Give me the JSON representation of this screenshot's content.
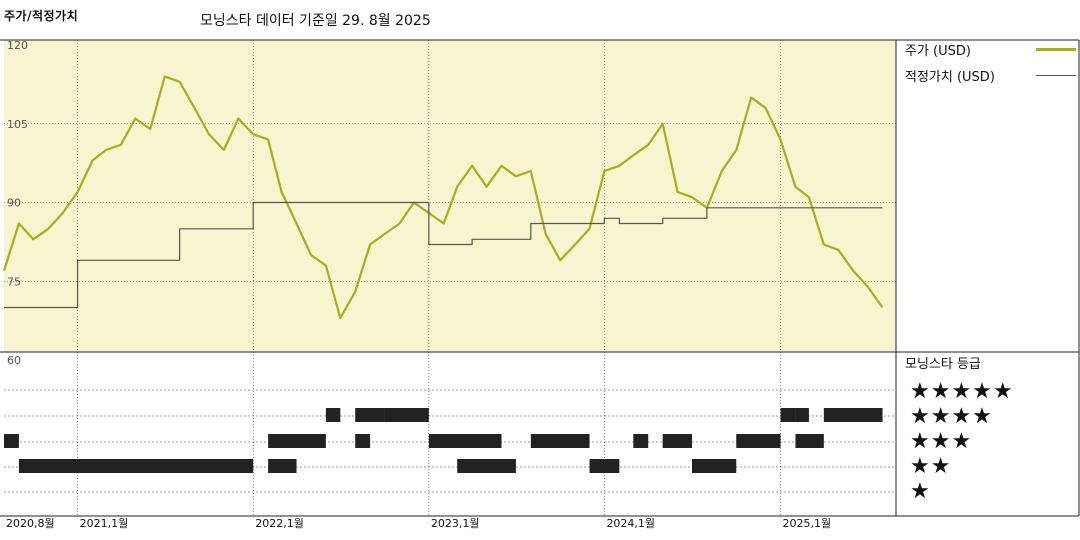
{
  "header": {
    "title": "주가/적정가치",
    "subtitle": "모닝스타 데이터 기준일 29. 8월 2025"
  },
  "legend": {
    "price_label": "주가 (USD)",
    "fair_label": "적정가치 (USD)",
    "rating_title": "모닝스타 등급",
    "star_rows": [
      "★★★★★",
      "★★★★",
      "★★★",
      "★★",
      "★"
    ]
  },
  "colors": {
    "price": "#a8ad1c",
    "fair": "#555555",
    "plot_bg": "#f8f4d0",
    "bar": "#222222"
  },
  "chart_data": [
    {
      "type": "line",
      "title": "주가/적정가치",
      "ylim": [
        60,
        120
      ],
      "y_ticks": [
        120,
        105,
        90,
        75,
        60
      ],
      "x_tick_labels": [
        "2020,8월",
        "2021,1월",
        "2022,1월",
        "2023,1월",
        "2024,1월",
        "2025,1월"
      ],
      "x_tick_dates": [
        "2020-08",
        "2021-01",
        "2022-01",
        "2023-01",
        "2024-01",
        "2025-01"
      ],
      "series": [
        {
          "name": "주가 (USD)",
          "dates": [
            "2020-08",
            "2020-09",
            "2020-10",
            "2020-11",
            "2020-12",
            "2021-01",
            "2021-02",
            "2021-03",
            "2021-04",
            "2021-05",
            "2021-06",
            "2021-07",
            "2021-08",
            "2021-09",
            "2021-10",
            "2021-11",
            "2021-12",
            "2022-01",
            "2022-02",
            "2022-03",
            "2022-04",
            "2022-05",
            "2022-06",
            "2022-07",
            "2022-08",
            "2022-09",
            "2022-10",
            "2022-11",
            "2022-12",
            "2023-01",
            "2023-02",
            "2023-03",
            "2023-04",
            "2023-05",
            "2023-06",
            "2023-07",
            "2023-08",
            "2023-09",
            "2023-10",
            "2023-11",
            "2023-12",
            "2024-01",
            "2024-02",
            "2024-03",
            "2024-04",
            "2024-05",
            "2024-06",
            "2024-07",
            "2024-08",
            "2024-09",
            "2024-10",
            "2024-11",
            "2024-12",
            "2025-01",
            "2025-02",
            "2025-03",
            "2025-04",
            "2025-05",
            "2025-06",
            "2025-07",
            "2025-08"
          ],
          "values": [
            77,
            86,
            83,
            85,
            88,
            92,
            98,
            100,
            101,
            106,
            104,
            114,
            113,
            108,
            103,
            100,
            106,
            103,
            102,
            92,
            86,
            80,
            78,
            68,
            73,
            82,
            84,
            86,
            90,
            88,
            86,
            93,
            97,
            93,
            97,
            95,
            96,
            84,
            79,
            82,
            85,
            96,
            97,
            99,
            101,
            105,
            92,
            91,
            89,
            96,
            100,
            110,
            108,
            102,
            93,
            91,
            82,
            81,
            77,
            74,
            70
          ],
          "color": "#a8ad1c"
        },
        {
          "name": "적정가치 (USD)",
          "dates": [
            "2020-08",
            "2021-01",
            "2021-01",
            "2021-08",
            "2021-08",
            "2022-01",
            "2022-01",
            "2023-01",
            "2023-01",
            "2023-04",
            "2023-04",
            "2023-08",
            "2023-08",
            "2024-01",
            "2024-01",
            "2024-02",
            "2024-02",
            "2024-05",
            "2024-05",
            "2024-08",
            "2024-08",
            "2025-08"
          ],
          "values": [
            70,
            70,
            79,
            79,
            85,
            85,
            90,
            90,
            82,
            82,
            83,
            83,
            86,
            86,
            87,
            87,
            86,
            86,
            87,
            87,
            89,
            89
          ],
          "color": "#555555"
        }
      ]
    },
    {
      "type": "bar",
      "title": "모닝스타 등급",
      "categories": [
        "★★★★★",
        "★★★★",
        "★★★",
        "★★",
        "★"
      ],
      "series": [
        {
          "name": "모닝스타 등급",
          "periods": [
            {
              "stars": 3,
              "from": "2020-08",
              "to": "2020-09"
            },
            {
              "stars": 2,
              "from": "2020-09",
              "to": "2022-01"
            },
            {
              "stars": 2,
              "from": "2022-02",
              "to": "2022-04"
            },
            {
              "stars": 3,
              "from": "2022-02",
              "to": "2022-06"
            },
            {
              "stars": 3,
              "from": "2022-08",
              "to": "2022-09"
            },
            {
              "stars": 4,
              "from": "2022-06",
              "to": "2022-07"
            },
            {
              "stars": 4,
              "from": "2022-08",
              "to": "2022-10"
            },
            {
              "stars": 4,
              "from": "2022-10",
              "to": "2023-01"
            },
            {
              "stars": 3,
              "from": "2023-01",
              "to": "2023-06"
            },
            {
              "stars": 2,
              "from": "2023-03",
              "to": "2023-07"
            },
            {
              "stars": 3,
              "from": "2023-08",
              "to": "2023-12"
            },
            {
              "stars": 2,
              "from": "2023-12",
              "to": "2024-02"
            },
            {
              "stars": 3,
              "from": "2024-03",
              "to": "2024-04"
            },
            {
              "stars": 3,
              "from": "2024-05",
              "to": "2024-07"
            },
            {
              "stars": 2,
              "from": "2024-07",
              "to": "2024-10"
            },
            {
              "stars": 3,
              "from": "2024-10",
              "to": "2025-01"
            },
            {
              "stars": 4,
              "from": "2025-01",
              "to": "2025-02"
            },
            {
              "stars": 4,
              "from": "2025-02",
              "to": "2025-03"
            },
            {
              "stars": 3,
              "from": "2025-02",
              "to": "2025-04"
            },
            {
              "stars": 4,
              "from": "2025-04",
              "to": "2025-08"
            }
          ]
        }
      ]
    }
  ]
}
